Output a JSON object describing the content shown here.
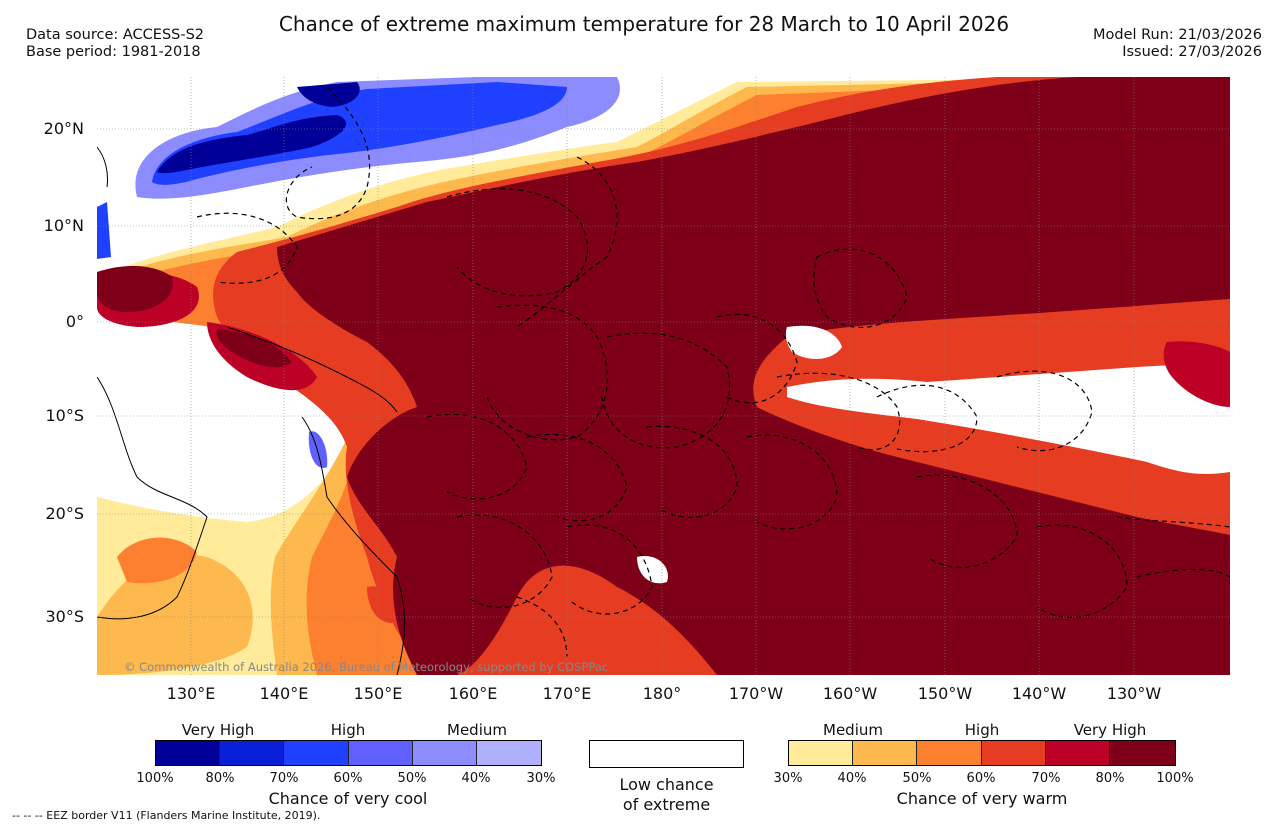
{
  "header": {
    "title": "Chance of extreme maximum temperature for 28 March to 10 April 2026",
    "data_source": "Data source: ACCESS-S2",
    "base_period": "Base period: 1981-2018",
    "model_run": "Model Run: 21/03/2026",
    "issued": "Issued: 27/03/2026"
  },
  "map": {
    "latitude_labels": [
      "20°N",
      "10°N",
      "0°",
      "10°S",
      "20°S",
      "30°S"
    ],
    "longitude_labels": [
      "130°E",
      "140°E",
      "150°E",
      "160°E",
      "170°E",
      "180°",
      "170°W",
      "160°W",
      "150°W",
      "140°W",
      "130°W"
    ],
    "copyright": "© Commonwealth of Australia 2026, Bureau of Meteorology, supported by COSPPac"
  },
  "legend": {
    "cool": {
      "categories": [
        "Very High",
        "High",
        "Medium"
      ],
      "ticks": [
        "100%",
        "80%",
        "70%",
        "60%",
        "50%",
        "40%",
        "30%"
      ],
      "title": "Chance of very cool",
      "colors": [
        "#000099",
        "#0a1fd8",
        "#2040ff",
        "#6060ff",
        "#8c8cff",
        "#b0b0ff"
      ]
    },
    "low": {
      "line1": "Low chance",
      "line2": "of extreme"
    },
    "warm": {
      "categories": [
        "Medium",
        "High",
        "Very High"
      ],
      "ticks": [
        "30%",
        "40%",
        "50%",
        "60%",
        "70%",
        "80%",
        "100%"
      ],
      "title": "Chance of very warm",
      "colors": [
        "#ffeb99",
        "#fdb94e",
        "#fd7f30",
        "#e63c22",
        "#bd0026",
        "#7d0018"
      ]
    },
    "eez_note": "--  --  -- EEZ border V11 (Flanders Marine Institute, 2019)."
  }
}
